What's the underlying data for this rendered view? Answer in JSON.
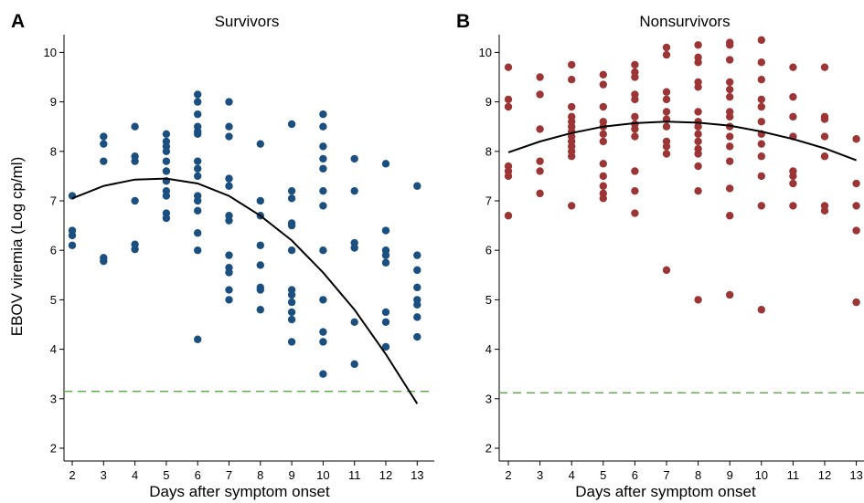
{
  "chart_data": [
    {
      "type": "scatter",
      "panel_letter": "A",
      "title": "Survivors",
      "xlabel": "Days after symptom onset",
      "ylabel": "EBOV viremia (Log cp/ml)",
      "xlim": [
        2,
        13
      ],
      "ylim": [
        2,
        10
      ],
      "x_ticks": [
        2,
        3,
        4,
        5,
        6,
        7,
        8,
        9,
        10,
        11,
        12,
        13
      ],
      "y_ticks": [
        2,
        3,
        4,
        5,
        6,
        7,
        8,
        9,
        10
      ],
      "grid": false,
      "point_color": "#1b4f80",
      "fit_color": "#000000",
      "threshold_color": "#5aa844",
      "threshold": 3.15,
      "points": [
        [
          2,
          7.1
        ],
        [
          2,
          6.4
        ],
        [
          2,
          6.3
        ],
        [
          2,
          6.1
        ],
        [
          3,
          8.3
        ],
        [
          3,
          8.15
        ],
        [
          3,
          7.8
        ],
        [
          3,
          5.85
        ],
        [
          3,
          5.78
        ],
        [
          4,
          8.5
        ],
        [
          4,
          7.9
        ],
        [
          4,
          7.8
        ],
        [
          4,
          7.0
        ],
        [
          4,
          6.12
        ],
        [
          4,
          6.02
        ],
        [
          5,
          8.35
        ],
        [
          5,
          8.2
        ],
        [
          5,
          8.1
        ],
        [
          5,
          8.0
        ],
        [
          5,
          7.8
        ],
        [
          5,
          7.6
        ],
        [
          5,
          7.4
        ],
        [
          5,
          7.2
        ],
        [
          5,
          7.1
        ],
        [
          5,
          6.75
        ],
        [
          5,
          6.65
        ],
        [
          6,
          9.15
        ],
        [
          6,
          9.0
        ],
        [
          6,
          8.75
        ],
        [
          6,
          8.5
        ],
        [
          6,
          8.4
        ],
        [
          6,
          8.35
        ],
        [
          6,
          7.8
        ],
        [
          6,
          7.65
        ],
        [
          6,
          7.5
        ],
        [
          6,
          7.1
        ],
        [
          6,
          7.0
        ],
        [
          6,
          6.8
        ],
        [
          6,
          6.35
        ],
        [
          6,
          6.0
        ],
        [
          6,
          4.2
        ],
        [
          7,
          9.0
        ],
        [
          7,
          8.5
        ],
        [
          7,
          8.3
        ],
        [
          7,
          7.45
        ],
        [
          7,
          7.3
        ],
        [
          7,
          6.7
        ],
        [
          7,
          6.6
        ],
        [
          7,
          5.9
        ],
        [
          7,
          5.65
        ],
        [
          7,
          5.55
        ],
        [
          7,
          5.2
        ],
        [
          7,
          5.0
        ],
        [
          8,
          8.15
        ],
        [
          8,
          7.0
        ],
        [
          8,
          6.7
        ],
        [
          8,
          6.1
        ],
        [
          8,
          5.7
        ],
        [
          8,
          5.25
        ],
        [
          8,
          5.2
        ],
        [
          8,
          4.8
        ],
        [
          9,
          8.55
        ],
        [
          9,
          7.2
        ],
        [
          9,
          7.05
        ],
        [
          9,
          6.55
        ],
        [
          9,
          6.5
        ],
        [
          9,
          6.0
        ],
        [
          9,
          5.2
        ],
        [
          9,
          5.1
        ],
        [
          9,
          4.95
        ],
        [
          9,
          4.75
        ],
        [
          9,
          4.6
        ],
        [
          9,
          4.15
        ],
        [
          10,
          8.75
        ],
        [
          10,
          8.5
        ],
        [
          10,
          8.1
        ],
        [
          10,
          7.85
        ],
        [
          10,
          7.65
        ],
        [
          10,
          7.2
        ],
        [
          10,
          6.9
        ],
        [
          10,
          6.0
        ],
        [
          10,
          5.0
        ],
        [
          10,
          4.35
        ],
        [
          10,
          4.15
        ],
        [
          10,
          3.5
        ],
        [
          11,
          7.85
        ],
        [
          11,
          7.2
        ],
        [
          11,
          6.15
        ],
        [
          11,
          6.05
        ],
        [
          11,
          4.55
        ],
        [
          11,
          3.7
        ],
        [
          12,
          7.75
        ],
        [
          12,
          6.4
        ],
        [
          12,
          6.0
        ],
        [
          12,
          5.9
        ],
        [
          12,
          5.75
        ],
        [
          12,
          4.75
        ],
        [
          12,
          4.55
        ],
        [
          12,
          4.05
        ],
        [
          13,
          7.3
        ],
        [
          13,
          5.9
        ],
        [
          13,
          5.6
        ],
        [
          13,
          5.25
        ],
        [
          13,
          5.0
        ],
        [
          13,
          4.9
        ],
        [
          13,
          4.65
        ],
        [
          13,
          4.25
        ]
      ],
      "fit_curve": [
        [
          2,
          7.05
        ],
        [
          3,
          7.3
        ],
        [
          4,
          7.43
        ],
        [
          5,
          7.45
        ],
        [
          6,
          7.35
        ],
        [
          7,
          7.1
        ],
        [
          8,
          6.7
        ],
        [
          9,
          6.2
        ],
        [
          10,
          5.55
        ],
        [
          11,
          4.8
        ],
        [
          12,
          3.9
        ],
        [
          13,
          2.9
        ]
      ]
    },
    {
      "type": "scatter",
      "panel_letter": "B",
      "title": "Nonsurvivors",
      "xlabel": "Days after symptom onset",
      "ylabel": "",
      "xlim": [
        2,
        13
      ],
      "ylim": [
        2,
        10
      ],
      "x_ticks": [
        2,
        3,
        4,
        5,
        6,
        7,
        8,
        9,
        10,
        11,
        12,
        13
      ],
      "y_ticks": [
        2,
        3,
        4,
        5,
        6,
        7,
        8,
        9,
        10
      ],
      "grid": false,
      "point_color": "#9c3535",
      "fit_color": "#000000",
      "threshold_color": "#5aa844",
      "threshold": 3.12,
      "points": [
        [
          2,
          9.7
        ],
        [
          2,
          9.05
        ],
        [
          2,
          8.9
        ],
        [
          2,
          7.7
        ],
        [
          2,
          7.6
        ],
        [
          2,
          7.5
        ],
        [
          2,
          6.7
        ],
        [
          3,
          9.5
        ],
        [
          3,
          9.15
        ],
        [
          3,
          8.45
        ],
        [
          3,
          7.8
        ],
        [
          3,
          7.6
        ],
        [
          3,
          7.15
        ],
        [
          4,
          9.75
        ],
        [
          4,
          9.45
        ],
        [
          4,
          8.9
        ],
        [
          4,
          8.7
        ],
        [
          4,
          8.6
        ],
        [
          4,
          8.5
        ],
        [
          4,
          8.4
        ],
        [
          4,
          8.3
        ],
        [
          4,
          8.2
        ],
        [
          4,
          8.1
        ],
        [
          4,
          8.0
        ],
        [
          4,
          7.9
        ],
        [
          4,
          6.9
        ],
        [
          5,
          9.55
        ],
        [
          5,
          9.35
        ],
        [
          5,
          8.9
        ],
        [
          5,
          8.6
        ],
        [
          5,
          8.5
        ],
        [
          5,
          8.35
        ],
        [
          5,
          8.2
        ],
        [
          5,
          7.75
        ],
        [
          5,
          7.5
        ],
        [
          5,
          7.3
        ],
        [
          5,
          7.15
        ],
        [
          5,
          7.05
        ],
        [
          6,
          9.75
        ],
        [
          6,
          9.6
        ],
        [
          6,
          9.5
        ],
        [
          6,
          9.15
        ],
        [
          6,
          9.05
        ],
        [
          6,
          8.7
        ],
        [
          6,
          8.55
        ],
        [
          6,
          8.45
        ],
        [
          6,
          8.3
        ],
        [
          6,
          7.6
        ],
        [
          6,
          7.2
        ],
        [
          6,
          6.75
        ],
        [
          7,
          10.1
        ],
        [
          7,
          9.95
        ],
        [
          7,
          9.2
        ],
        [
          7,
          9.05
        ],
        [
          7,
          8.8
        ],
        [
          7,
          8.65
        ],
        [
          7,
          8.5
        ],
        [
          7,
          8.2
        ],
        [
          7,
          8.1
        ],
        [
          7,
          7.95
        ],
        [
          7,
          5.6
        ],
        [
          8,
          10.15
        ],
        [
          8,
          9.9
        ],
        [
          8,
          9.8
        ],
        [
          8,
          9.4
        ],
        [
          8,
          9.3
        ],
        [
          8,
          8.8
        ],
        [
          8,
          8.6
        ],
        [
          8,
          8.5
        ],
        [
          8,
          8.35
        ],
        [
          8,
          8.2
        ],
        [
          8,
          8.05
        ],
        [
          8,
          7.95
        ],
        [
          8,
          7.7
        ],
        [
          8,
          7.2
        ],
        [
          8,
          5.0
        ],
        [
          9,
          10.2
        ],
        [
          9,
          10.15
        ],
        [
          9,
          9.85
        ],
        [
          9,
          9.4
        ],
        [
          9,
          9.25
        ],
        [
          9,
          9.1
        ],
        [
          9,
          8.8
        ],
        [
          9,
          8.7
        ],
        [
          9,
          8.5
        ],
        [
          9,
          8.3
        ],
        [
          9,
          8.1
        ],
        [
          9,
          7.8
        ],
        [
          9,
          7.25
        ],
        [
          9,
          6.7
        ],
        [
          9,
          5.1
        ],
        [
          10,
          10.25
        ],
        [
          10,
          9.8
        ],
        [
          10,
          9.45
        ],
        [
          10,
          9.05
        ],
        [
          10,
          8.9
        ],
        [
          10,
          8.6
        ],
        [
          10,
          8.35
        ],
        [
          10,
          8.15
        ],
        [
          10,
          7.9
        ],
        [
          10,
          7.5
        ],
        [
          10,
          6.9
        ],
        [
          10,
          4.8
        ],
        [
          11,
          9.7
        ],
        [
          11,
          9.1
        ],
        [
          11,
          8.7
        ],
        [
          11,
          8.3
        ],
        [
          11,
          7.6
        ],
        [
          11,
          7.5
        ],
        [
          11,
          7.35
        ],
        [
          11,
          6.9
        ],
        [
          12,
          9.7
        ],
        [
          12,
          8.7
        ],
        [
          12,
          8.65
        ],
        [
          12,
          8.3
        ],
        [
          12,
          7.9
        ],
        [
          12,
          6.9
        ],
        [
          12,
          6.8
        ],
        [
          13,
          8.25
        ],
        [
          13,
          7.35
        ],
        [
          13,
          6.9
        ],
        [
          13,
          6.4
        ],
        [
          13,
          4.95
        ]
      ],
      "fit_curve": [
        [
          2,
          7.98
        ],
        [
          3,
          8.2
        ],
        [
          4,
          8.37
        ],
        [
          5,
          8.5
        ],
        [
          6,
          8.57
        ],
        [
          7,
          8.6
        ],
        [
          8,
          8.58
        ],
        [
          9,
          8.52
        ],
        [
          10,
          8.4
        ],
        [
          11,
          8.25
        ],
        [
          12,
          8.06
        ],
        [
          13,
          7.82
        ]
      ]
    }
  ]
}
